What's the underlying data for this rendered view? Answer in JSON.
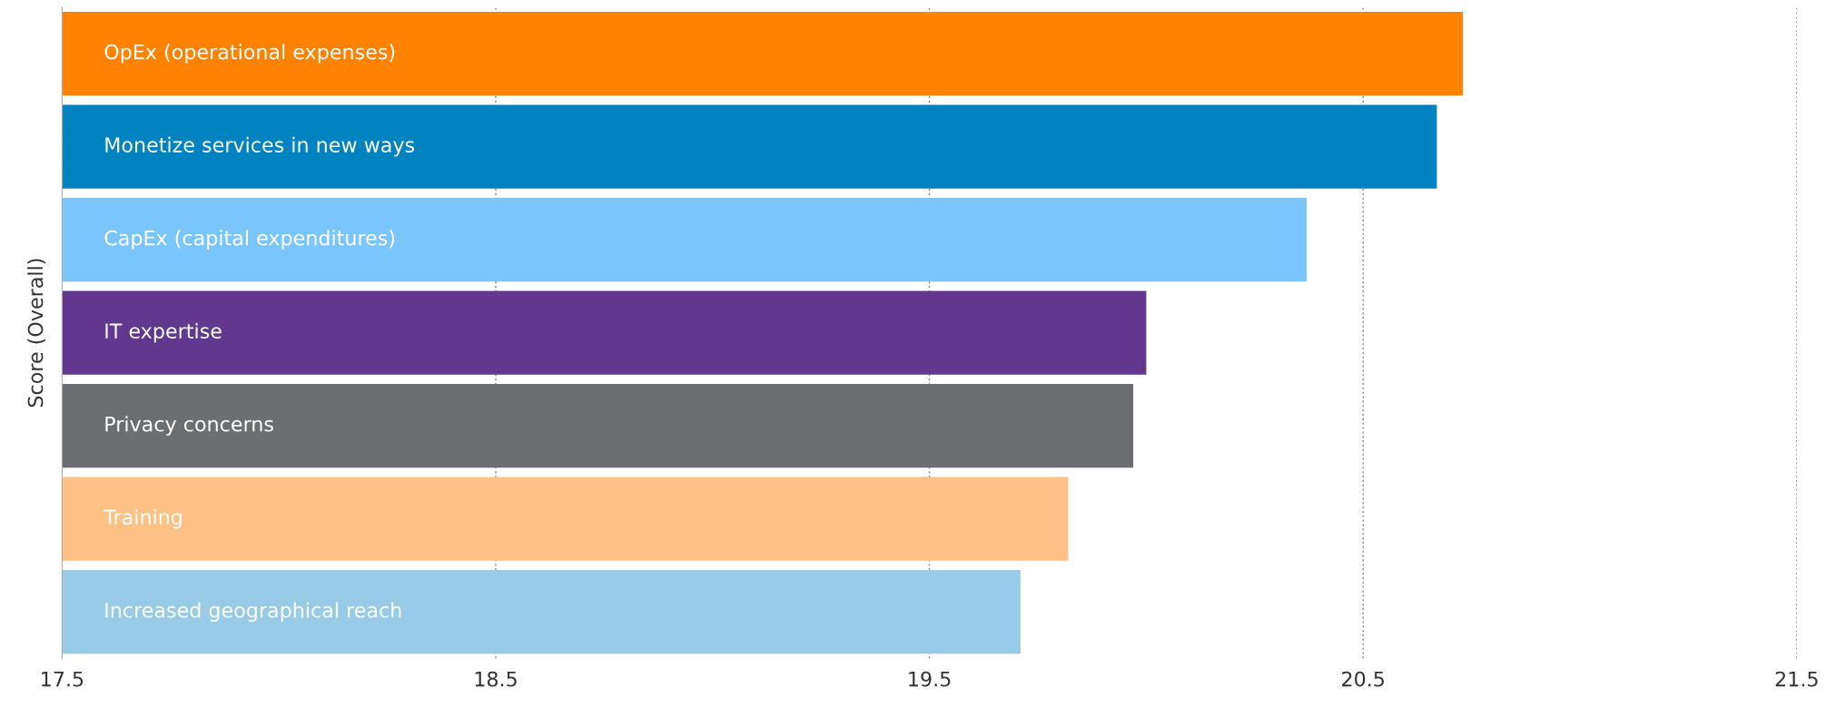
{
  "chart_data": {
    "type": "bar",
    "orientation": "horizontal",
    "ylabel": "Score (Overall)",
    "categories": [
      "OpEx (operational expenses)",
      "Monetize services in new ways",
      "CapEx (capital expenditures)",
      "IT expertise",
      "Privacy concerns",
      "Training",
      "Increased geographical reach"
    ],
    "values": [
      20.73,
      20.67,
      20.37,
      20.0,
      19.97,
      19.82,
      19.71
    ],
    "colors": [
      "#ff8300",
      "#0083c0",
      "#7ac6fc",
      "#62388f",
      "#6d6e71",
      "#fdc183",
      "#98cce6"
    ],
    "xlim": [
      17.5,
      21.5
    ],
    "xticks": [
      17.5,
      18.5,
      19.5,
      20.5,
      21.5
    ],
    "grid": "x",
    "tick_labels": "x"
  }
}
